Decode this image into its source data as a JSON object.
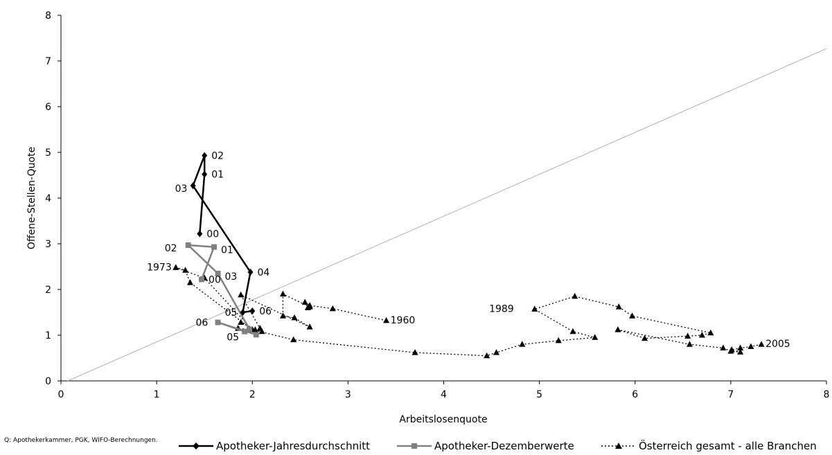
{
  "chart_data": {
    "type": "line",
    "xlabel": "Arbeitslosenquote",
    "ylabel": "Offene-Stellen-Quote",
    "xlim": [
      0,
      8
    ],
    "ylim": [
      0,
      8
    ],
    "xticks": [
      "0",
      "1",
      "2",
      "3",
      "4",
      "5",
      "6",
      "7",
      "8"
    ],
    "yticks": [
      "0",
      "1",
      "2",
      "3",
      "4",
      "5",
      "6",
      "7",
      "8"
    ],
    "grid": false,
    "legend_position": "bottom",
    "reference_line": {
      "points": [
        [
          0.07,
          0
        ],
        [
          8,
          7.27
        ]
      ],
      "color": "#b0b0b0"
    },
    "series": [
      {
        "name": "Apotheker-Jahresdurchschnitt",
        "color": "#000000",
        "marker": "diamond",
        "style": "solid",
        "points": [
          {
            "x": 1.45,
            "y": 3.22,
            "label": "00"
          },
          {
            "x": 1.5,
            "y": 4.52,
            "label": "01"
          },
          {
            "x": 1.5,
            "y": 4.93,
            "label": "02"
          },
          {
            "x": 1.38,
            "y": 4.27,
            "label": "03"
          },
          {
            "x": 1.98,
            "y": 2.38,
            "label": "04"
          },
          {
            "x": 1.9,
            "y": 1.5,
            "label": "05"
          },
          {
            "x": 2.0,
            "y": 1.53,
            "label": "06"
          }
        ]
      },
      {
        "name": "Apotheker-Dezemberwerte",
        "color": "#808080",
        "marker": "square",
        "style": "solid",
        "points": [
          {
            "x": 1.47,
            "y": 2.22,
            "label": "00"
          },
          {
            "x": 1.6,
            "y": 2.93,
            "label": "01"
          },
          {
            "x": 1.33,
            "y": 2.97,
            "label": "02"
          },
          {
            "x": 1.64,
            "y": 2.35,
            "label": "03"
          },
          {
            "x": 1.97,
            "y": 1.13,
            "label": ""
          },
          {
            "x": 1.92,
            "y": 1.08,
            "label": "05"
          },
          {
            "x": 1.64,
            "y": 1.28,
            "label": "06"
          },
          {
            "x": 2.04,
            "y": 1.01,
            "label": ""
          }
        ]
      },
      {
        "name": "Österreich gesamt - alle Branchen",
        "color": "#000000",
        "marker": "triangle",
        "style": "dotted",
        "points": [
          {
            "x": 3.4,
            "y": 1.32,
            "label": "1960"
          },
          {
            "x": 2.84,
            "y": 1.58,
            "label": ""
          },
          {
            "x": 2.6,
            "y": 1.65,
            "label": ""
          },
          {
            "x": 2.55,
            "y": 1.72,
            "label": ""
          },
          {
            "x": 2.58,
            "y": 1.6,
            "label": ""
          },
          {
            "x": 2.6,
            "y": 1.62,
            "label": ""
          },
          {
            "x": 2.32,
            "y": 1.9,
            "label": ""
          },
          {
            "x": 2.32,
            "y": 1.42,
            "label": ""
          },
          {
            "x": 2.44,
            "y": 1.38,
            "label": ""
          },
          {
            "x": 2.6,
            "y": 1.18,
            "label": ""
          },
          {
            "x": 1.88,
            "y": 1.88,
            "label": ""
          },
          {
            "x": 2.08,
            "y": 1.15,
            "label": ""
          },
          {
            "x": 2.1,
            "y": 1.08,
            "label": ""
          },
          {
            "x": 2.03,
            "y": 1.12,
            "label": ""
          },
          {
            "x": 1.88,
            "y": 1.28,
            "label": ""
          },
          {
            "x": 1.85,
            "y": 1.15,
            "label": ""
          },
          {
            "x": 2.0,
            "y": 1.12,
            "label": ""
          },
          {
            "x": 1.5,
            "y": 2.25,
            "label": ""
          },
          {
            "x": 1.2,
            "y": 2.48,
            "label": "1973"
          },
          {
            "x": 1.3,
            "y": 2.42,
            "label": ""
          },
          {
            "x": 1.35,
            "y": 2.15,
            "label": ""
          },
          {
            "x": 2.0,
            "y": 1.12,
            "label": ""
          },
          {
            "x": 2.43,
            "y": 0.9,
            "label": ""
          },
          {
            "x": 3.7,
            "y": 0.62,
            "label": ""
          },
          {
            "x": 4.45,
            "y": 0.55,
            "label": ""
          },
          {
            "x": 4.55,
            "y": 0.62,
            "label": ""
          },
          {
            "x": 4.82,
            "y": 0.8,
            "label": ""
          },
          {
            "x": 5.2,
            "y": 0.88,
            "label": ""
          },
          {
            "x": 5.58,
            "y": 0.95,
            "label": ""
          },
          {
            "x": 5.35,
            "y": 1.08,
            "label": ""
          },
          {
            "x": 4.95,
            "y": 1.57,
            "label": "1989"
          },
          {
            "x": 5.37,
            "y": 1.85,
            "label": ""
          },
          {
            "x": 5.83,
            "y": 1.62,
            "label": ""
          },
          {
            "x": 5.97,
            "y": 1.42,
            "label": ""
          },
          {
            "x": 6.79,
            "y": 1.05,
            "label": ""
          },
          {
            "x": 6.7,
            "y": 1.0,
            "label": ""
          },
          {
            "x": 6.55,
            "y": 0.98,
            "label": ""
          },
          {
            "x": 6.1,
            "y": 0.93,
            "label": ""
          },
          {
            "x": 5.82,
            "y": 1.12,
            "label": ""
          },
          {
            "x": 6.57,
            "y": 0.8,
            "label": ""
          },
          {
            "x": 6.92,
            "y": 0.72,
            "label": ""
          },
          {
            "x": 7.0,
            "y": 0.65,
            "label": ""
          },
          {
            "x": 7.1,
            "y": 0.63,
            "label": ""
          },
          {
            "x": 7.01,
            "y": 0.68,
            "label": ""
          },
          {
            "x": 7.1,
            "y": 0.72,
            "label": ""
          },
          {
            "x": 7.21,
            "y": 0.75,
            "label": ""
          },
          {
            "x": 7.32,
            "y": 0.8,
            "label": "2005"
          }
        ]
      }
    ]
  },
  "source_note": "Q: Apothekerkammer, PGK, WIFO-Berechnungen."
}
